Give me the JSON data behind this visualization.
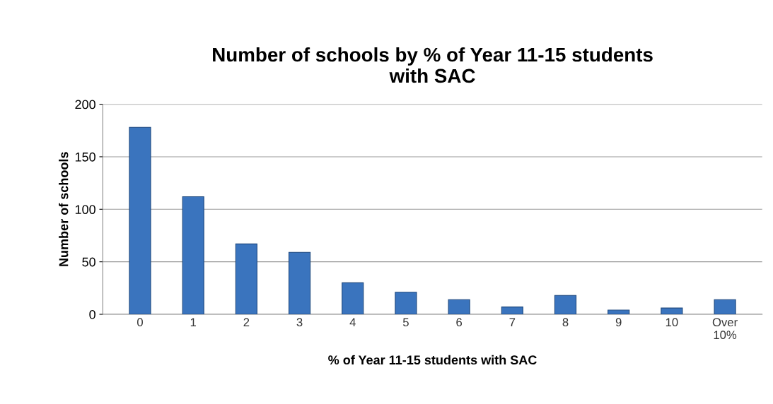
{
  "chart_data": {
    "type": "bar",
    "title": "Number of schools by % of Year 11-15 students\nwith SAC",
    "xlabel": "% of Year 11-15 students with SAC",
    "ylabel": "Number of schools",
    "categories": [
      "0",
      "1",
      "2",
      "3",
      "4",
      "5",
      "6",
      "7",
      "8",
      "9",
      "10",
      "Over\n10%"
    ],
    "values": [
      178,
      112,
      67,
      59,
      30,
      21,
      14,
      7,
      18,
      4,
      6,
      14
    ],
    "color": "#3a74be",
    "ylim": [
      0,
      200
    ],
    "yticks": [
      0,
      50,
      100,
      150,
      200
    ],
    "grid": "y",
    "legend": false
  }
}
